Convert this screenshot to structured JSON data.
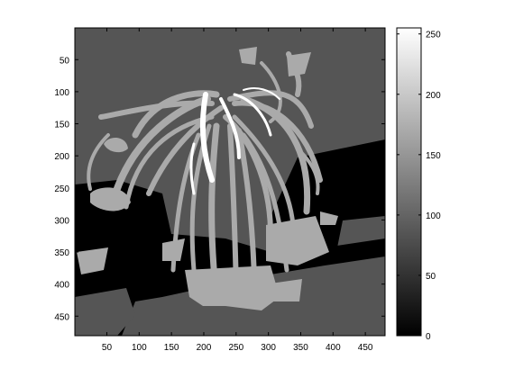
{
  "chart_data": {
    "type": "heatmap",
    "title": "",
    "xlabel": "",
    "ylabel": "",
    "xlim": [
      1,
      480
    ],
    "ylim": [
      1,
      480
    ],
    "y_direction": "reversed",
    "x_ticks": [
      50,
      100,
      150,
      200,
      250,
      300,
      350,
      400,
      450
    ],
    "y_ticks": [
      50,
      100,
      150,
      200,
      250,
      300,
      350,
      400,
      450
    ],
    "x_tick_labels": [
      "50",
      "100",
      "150",
      "200",
      "250",
      "300",
      "350",
      "400",
      "450"
    ],
    "y_tick_labels": [
      "50",
      "100",
      "150",
      "200",
      "250",
      "300",
      "350",
      "400",
      "450"
    ],
    "colorbar": {
      "limits": [
        0,
        255
      ],
      "ticks": [
        0,
        50,
        100,
        150,
        200,
        250
      ],
      "tick_labels": [
        "0",
        "50",
        "100",
        "150",
        "200",
        "250"
      ],
      "colormap": "gray"
    },
    "levels": [
      {
        "value": 0,
        "color": "#000000",
        "region": "background shadow"
      },
      {
        "value": 85,
        "color": "#555555",
        "region": "background"
      },
      {
        "value": 170,
        "color": "#aaaaaa",
        "region": "plant leaves"
      },
      {
        "value": 255,
        "color": "#ffffff",
        "region": "highlights"
      }
    ],
    "grid": false
  }
}
